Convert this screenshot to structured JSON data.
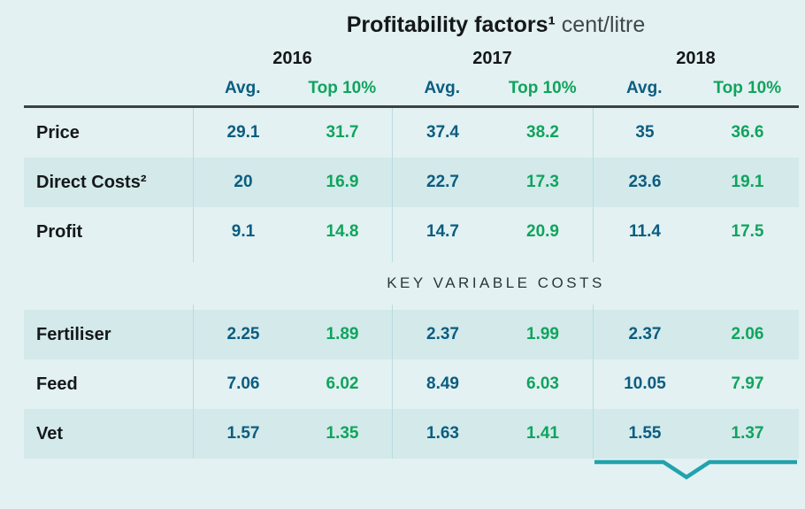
{
  "title": {
    "main": "Profitability factors¹",
    "unit": " cent/litre"
  },
  "colors": {
    "background": "#e3f1f2",
    "row_band": "#d3e9ea",
    "rule": "#3b4244",
    "divider": "#b8dcde",
    "avg_text": "#0b5d80",
    "top10_text": "#10a45d",
    "heading_text": "#15181a",
    "unit_text": "#40474c",
    "section_text": "#2d3539",
    "pointer": "#21a2ad"
  },
  "chart_data": {
    "type": "table",
    "title": "Profitability factors¹",
    "unit": "cent/litre",
    "years": [
      "2016",
      "2017",
      "2018"
    ],
    "sub_columns": [
      "Avg.",
      "Top 10%"
    ],
    "section_break_label": "KEY VARIABLE COSTS",
    "sections": [
      {
        "rows": [
          {
            "label": "Price",
            "shaded": false,
            "values": [
              [
                29.1,
                31.7
              ],
              [
                37.4,
                38.2
              ],
              [
                35,
                36.6
              ]
            ]
          },
          {
            "label": "Direct Costs²",
            "shaded": true,
            "values": [
              [
                20,
                16.9
              ],
              [
                22.7,
                17.3
              ],
              [
                23.6,
                19.1
              ]
            ]
          },
          {
            "label": "Profit",
            "shaded": false,
            "values": [
              [
                9.1,
                14.8
              ],
              [
                14.7,
                20.9
              ],
              [
                11.4,
                17.5
              ]
            ]
          }
        ]
      },
      {
        "rows": [
          {
            "label": "Fertiliser",
            "shaded": true,
            "values": [
              [
                2.25,
                1.89
              ],
              [
                2.37,
                1.99
              ],
              [
                2.37,
                2.06
              ]
            ]
          },
          {
            "label": "Feed",
            "shaded": false,
            "values": [
              [
                7.06,
                6.02
              ],
              [
                8.49,
                6.03
              ],
              [
                10.05,
                7.97
              ]
            ]
          },
          {
            "label": "Vet",
            "shaded": true,
            "values": [
              [
                1.57,
                1.35
              ],
              [
                1.63,
                1.41
              ],
              [
                1.55,
                1.37
              ]
            ]
          }
        ]
      }
    ],
    "highlight": {
      "group": "2018",
      "marker": "callout-pointer-under-2018-column"
    }
  }
}
